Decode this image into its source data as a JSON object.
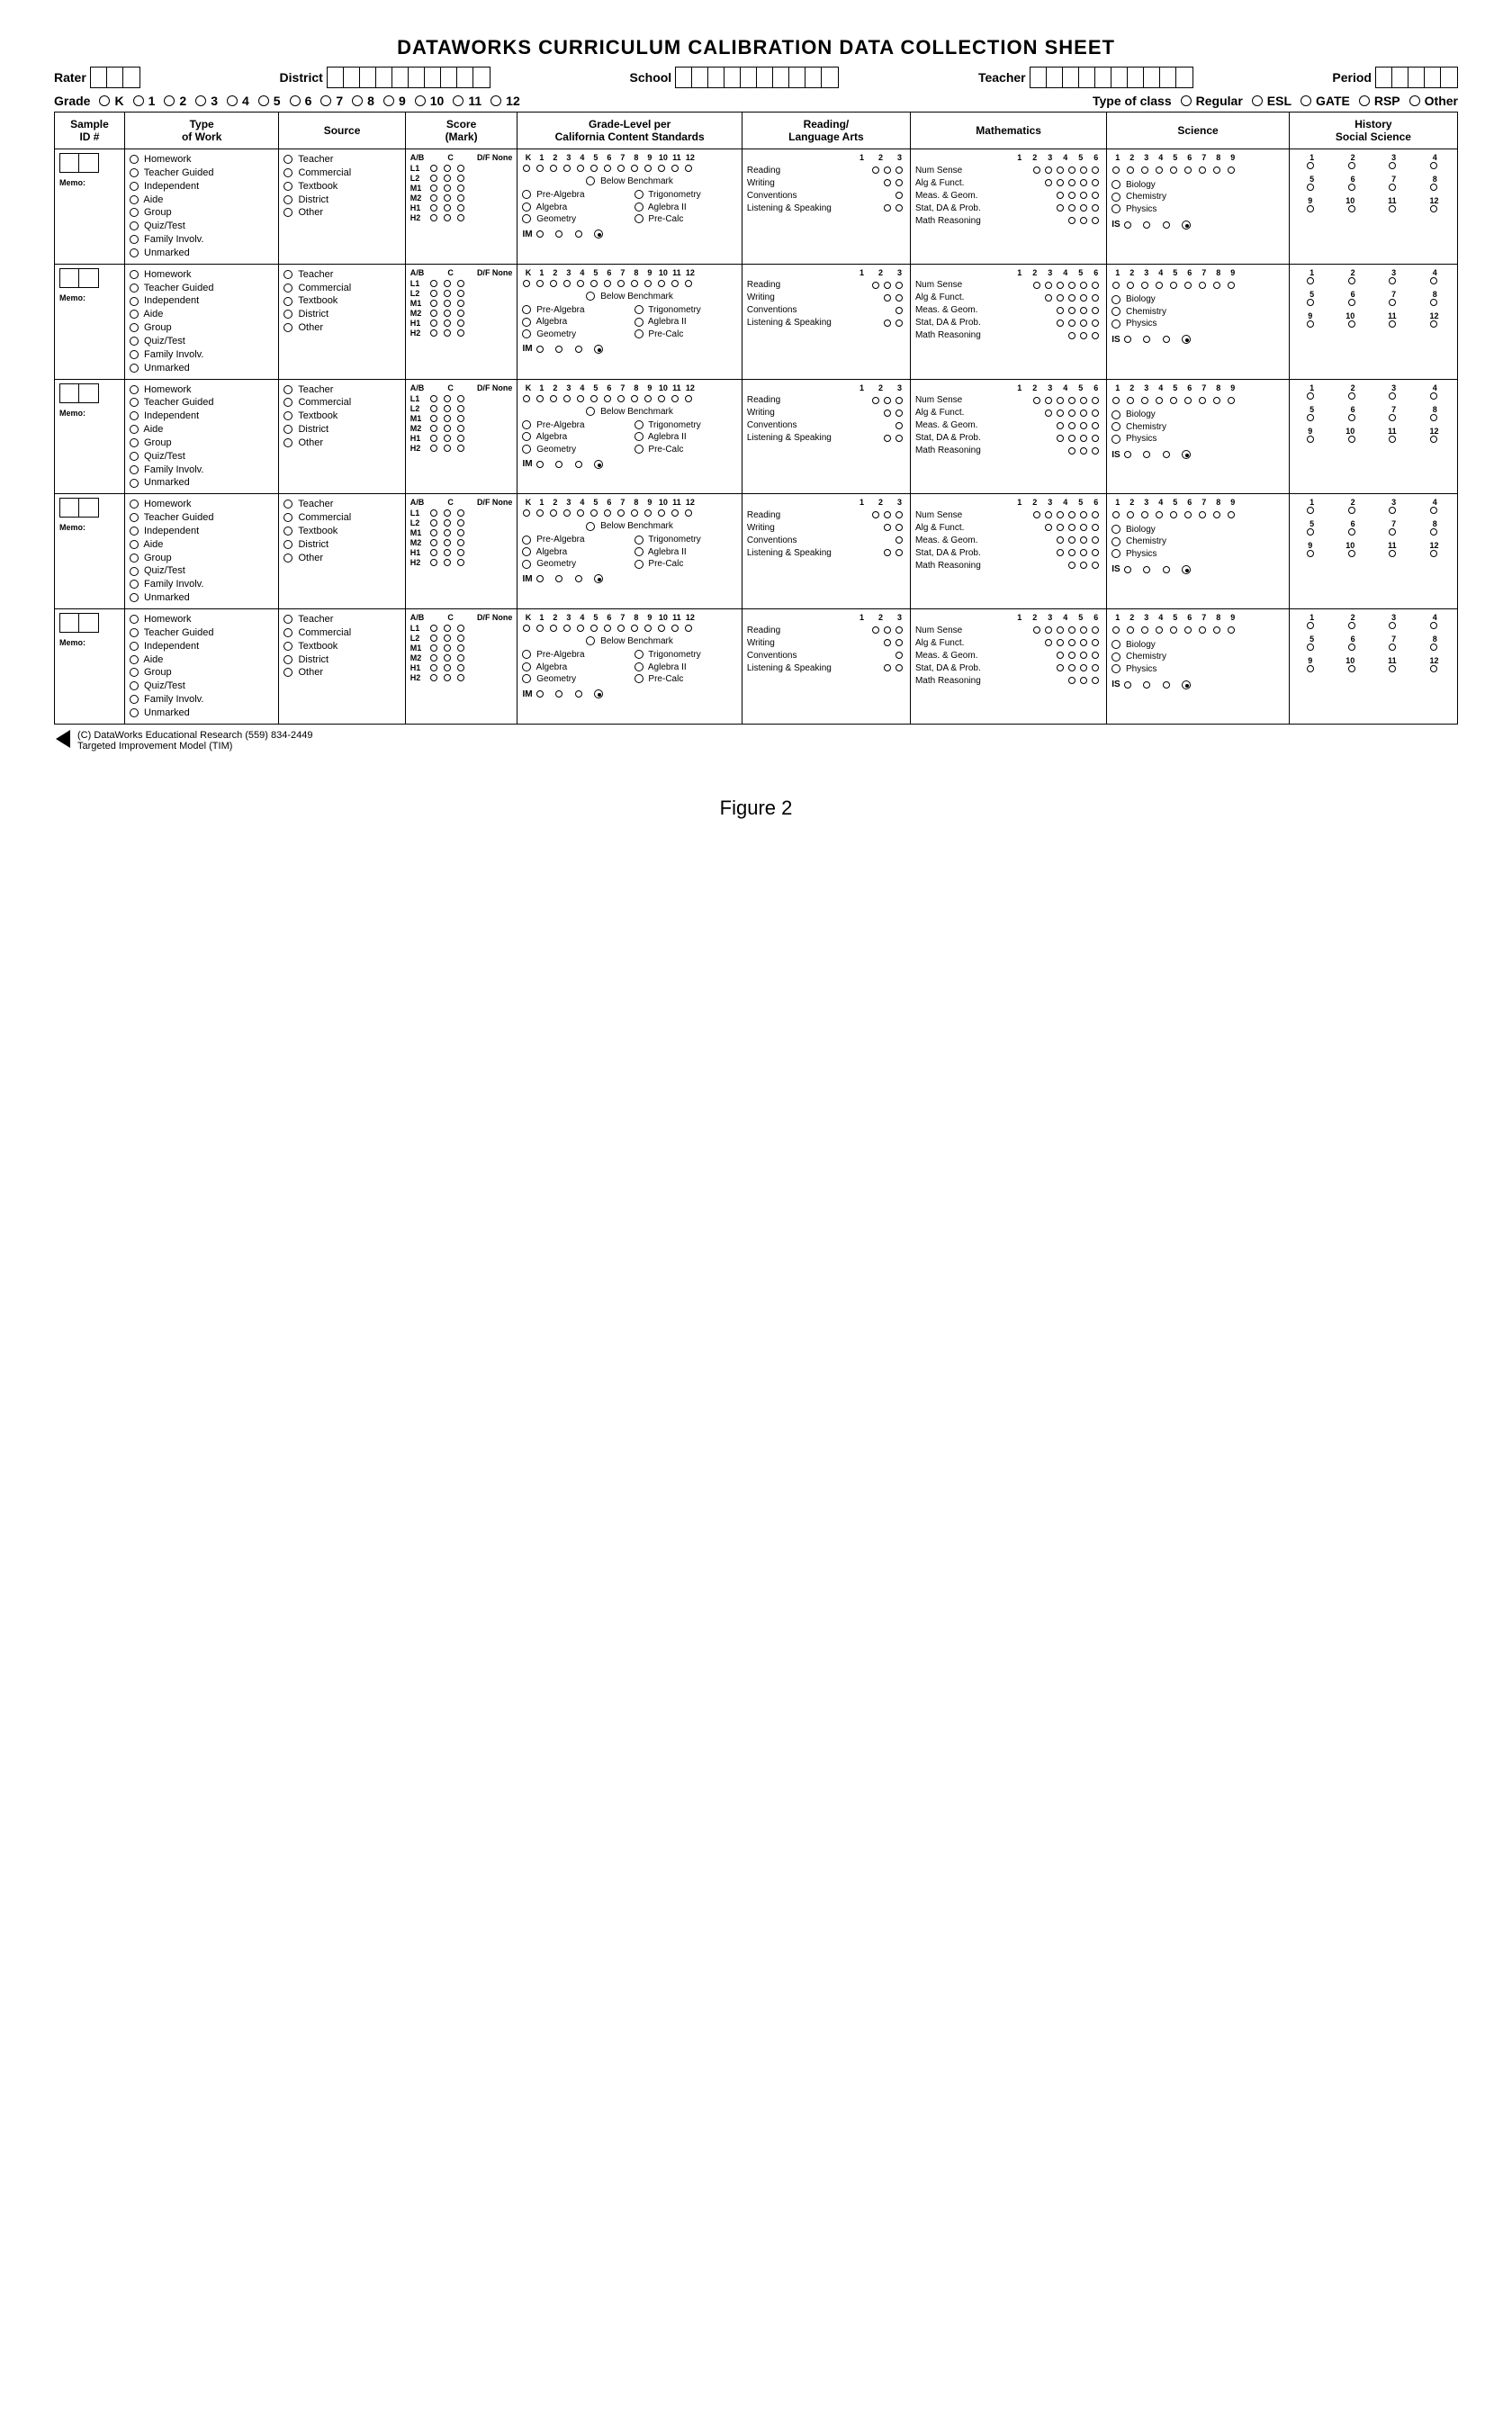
{
  "title": "DATAWORKS CURRICULUM CALIBRATION DATA COLLECTION SHEET",
  "header": {
    "rater": "Rater",
    "district": "District",
    "school": "School",
    "teacher": "Teacher",
    "period": "Period"
  },
  "gradeRow": {
    "label": "Grade",
    "levels": [
      "K",
      "1",
      "2",
      "3",
      "4",
      "5",
      "6",
      "7",
      "8",
      "9",
      "10",
      "11",
      "12"
    ],
    "classLabel": "Type of class",
    "classes": [
      "Regular",
      "ESL",
      "GATE",
      "RSP",
      "Other"
    ]
  },
  "columns": {
    "sample": "Sample\nID #",
    "type": "Type\nof Work",
    "source": "Source",
    "score": "Score\n(Mark)",
    "grade": "Grade-Level per\nCalifornia Content Standards",
    "rla": "Reading/\nLanguage Arts",
    "math": "Mathematics",
    "sci": "Science",
    "hist": "History\nSocial Science"
  },
  "typeOptions": [
    "Homework",
    "Teacher Guided",
    "Independent",
    "Aide",
    "Group",
    "Quiz/Test",
    "Family Involv.",
    "Unmarked"
  ],
  "sourceOptions": [
    "Teacher",
    "Commercial",
    "Textbook",
    "District",
    "Other"
  ],
  "scoreHdr": [
    "A/B",
    "C",
    "D/F None"
  ],
  "scoreRows": [
    "L1",
    "L2",
    "M1",
    "M2",
    "H1",
    "H2"
  ],
  "gradeNums": [
    "K",
    "1",
    "2",
    "3",
    "4",
    "5",
    "6",
    "7",
    "8",
    "9",
    "10",
    "11",
    "12"
  ],
  "gradeBelow": "Below Benchmark",
  "gradeLeft": [
    "Pre-Algebra",
    "Algebra",
    "Geometry"
  ],
  "gradeRight": [
    "Trigonometry",
    "Aglebra II",
    "Pre-Calc"
  ],
  "gradeIM": "IM",
  "rlaNums": [
    "1",
    "2",
    "3"
  ],
  "rlaStrands": [
    "Reading",
    "Writing",
    "Conventions",
    "Listening & Speaking"
  ],
  "rlaBubs": [
    3,
    2,
    1,
    2
  ],
  "mathNums": [
    "1",
    "2",
    "3",
    "4",
    "5",
    "6"
  ],
  "mathStrands": [
    "Num Sense",
    "Alg & Funct.",
    "Meas. & Geom.",
    "Stat, DA & Prob.",
    "Math Reasoning"
  ],
  "mathBubs": [
    6,
    5,
    4,
    4,
    3
  ],
  "sciNums": [
    "1",
    "2",
    "3",
    "4",
    "5",
    "6",
    "7",
    "8",
    "9"
  ],
  "sciStrands": [
    "Biology",
    "Chemistry",
    "Physics"
  ],
  "sciIS": "IS",
  "histNums1": [
    "1",
    "2",
    "3",
    "4"
  ],
  "histNums2": [
    "5",
    "6",
    "7",
    "8"
  ],
  "histNums3": [
    "9",
    "10",
    "11",
    "12"
  ],
  "memo": "Memo:",
  "footer1": "(C)   DataWorks Educational Research (559) 834-2449",
  "footer2": "Targeted Improvement Model (TIM)",
  "figcap": "Figure 2",
  "rowCount": 5
}
